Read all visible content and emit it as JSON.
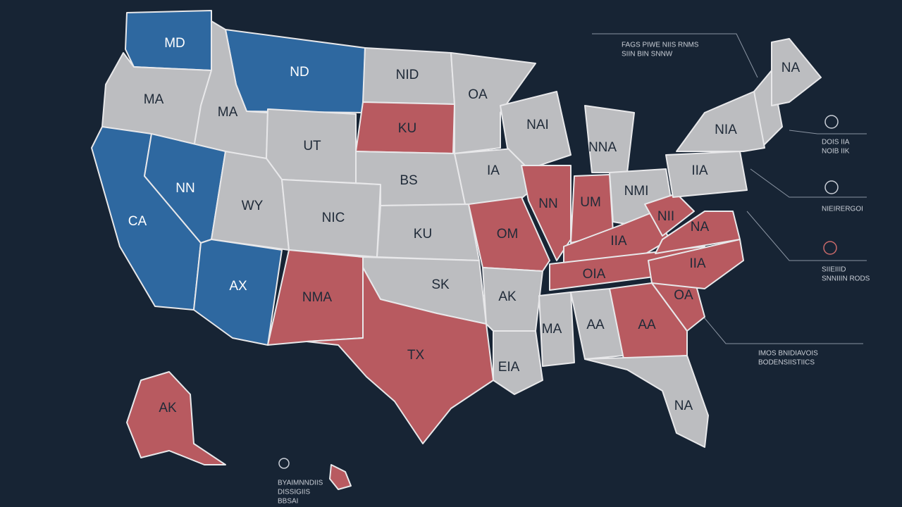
{
  "states": [
    "MD",
    "ND",
    "MA",
    "MA",
    "CA",
    "NN",
    "UT",
    "WY",
    "AX",
    "NIC",
    "NMA",
    "NID",
    "KU",
    "BS",
    "KU",
    "SK",
    "TX",
    "OA",
    "IA",
    "OM",
    "AK",
    "EIA",
    "NAI",
    "NN",
    "NNA",
    "UM",
    "NMI",
    "IIA",
    "OIA",
    "MA",
    "AA",
    "AA",
    "NA",
    "OA",
    "IIA",
    "NA",
    "NII",
    "IIA",
    "NIA",
    "NA",
    "AK"
  ],
  "annotations": [
    [
      "FAGS PIWE NIIS RNMS",
      "SIIN BIN SNNW"
    ],
    [
      "DOIS IIA",
      "NOIB IIK"
    ],
    [
      "NIEIRERGOI"
    ],
    [
      "SIIEIIID",
      "SNNIIIN RODS"
    ],
    [
      "IMOS BNIDIAVOIS",
      "BODENSIISTIICS"
    ],
    [
      "BYAIMNNDIIS",
      "DISSIGIIS",
      "BBSAI"
    ]
  ]
}
